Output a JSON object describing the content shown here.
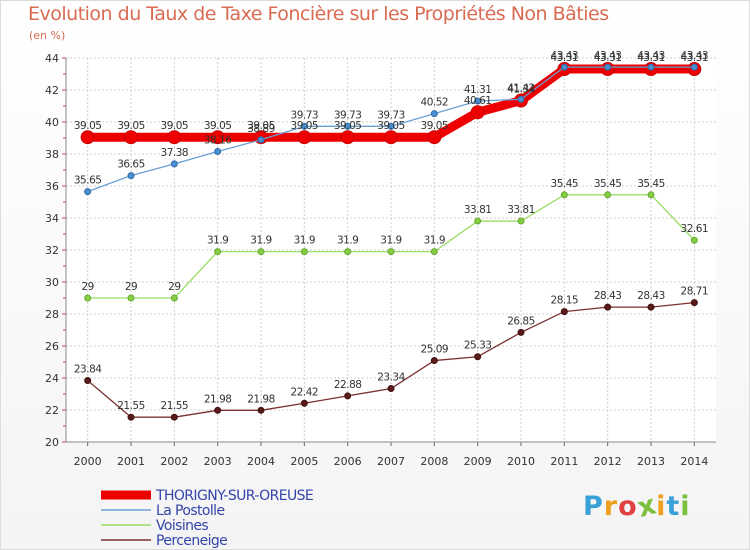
{
  "header": {
    "title": "Evolution du Taux de Taxe Foncière sur les Propriétés Non Bâties",
    "unit": "(en %)"
  },
  "logo": {
    "letters": [
      "P",
      "r",
      "o",
      "x",
      "i",
      "t",
      "i"
    ],
    "colors": [
      "#3aa0d8",
      "#f0a020",
      "#e04040",
      "#7cc040",
      "#f0a020",
      "#3aa0d8",
      "#7cc040"
    ]
  },
  "chart_data": {
    "type": "line",
    "x": [
      "2000",
      "2001",
      "2002",
      "2003",
      "2004",
      "2005",
      "2006",
      "2007",
      "2008",
      "2009",
      "2010",
      "2011",
      "2012",
      "2013",
      "2014"
    ],
    "ylim": [
      20,
      44
    ],
    "yticks": [
      "20",
      "22",
      "24",
      "26",
      "28",
      "30",
      "32",
      "34",
      "36",
      "38",
      "40",
      "42",
      "44"
    ],
    "grid": true,
    "legend": "bottom-left",
    "series": [
      {
        "name": "THORIGNY-SUR-OREUSE",
        "color": "#ee0000",
        "values": [
          39.05,
          39.05,
          39.05,
          39.05,
          39.05,
          39.05,
          39.05,
          39.05,
          39.05,
          40.61,
          41.34,
          43.31,
          43.31,
          43.31,
          43.31
        ],
        "labels": [
          "39.05",
          "39.05",
          "39.05",
          "39.05",
          "39.05",
          "39.05",
          "39.05",
          "39.05",
          "39.05",
          "40.61",
          "41.34",
          "43.31",
          "43.31",
          "43.31",
          "43.31"
        ]
      },
      {
        "name": "La Postolle",
        "color": "#6a9fd4",
        "values": [
          35.65,
          36.65,
          37.38,
          38.16,
          38.89,
          39.73,
          39.73,
          39.73,
          40.52,
          41.31,
          41.42,
          43.43,
          43.43,
          43.43,
          43.43
        ],
        "labels": [
          "35.65",
          "36.65",
          "37.38",
          "38.16",
          "38.89",
          "39.73",
          "39.73",
          "39.73",
          "40.52",
          "41.31",
          "41.42",
          "43.43",
          "43.43",
          "43.43",
          "43.43"
        ]
      },
      {
        "name": "Voisines",
        "color": "#99dd66",
        "values": [
          29,
          29,
          29,
          31.9,
          31.9,
          31.9,
          31.9,
          31.9,
          31.9,
          33.81,
          33.81,
          35.45,
          35.45,
          35.45,
          32.61
        ],
        "labels": [
          "29",
          "29",
          "29",
          "31.9",
          "31.9",
          "31.9",
          "31.9",
          "31.9",
          "31.9",
          "33.81",
          "33.81",
          "35.45",
          "35.45",
          "35.45",
          "32.61"
        ]
      },
      {
        "name": "Perceneige",
        "color": "#7a3030",
        "values": [
          23.84,
          21.55,
          21.55,
          21.98,
          21.98,
          22.42,
          22.88,
          23.34,
          25.09,
          25.33,
          26.85,
          28.15,
          28.43,
          28.43,
          28.71
        ],
        "labels": [
          "23.84",
          "21.55",
          "21.55",
          "21.98",
          "21.98",
          "22.42",
          "22.88",
          "23.34",
          "25.09",
          "25.33",
          "26.85",
          "28.15",
          "28.43",
          "28.43",
          "28.71"
        ]
      }
    ]
  }
}
